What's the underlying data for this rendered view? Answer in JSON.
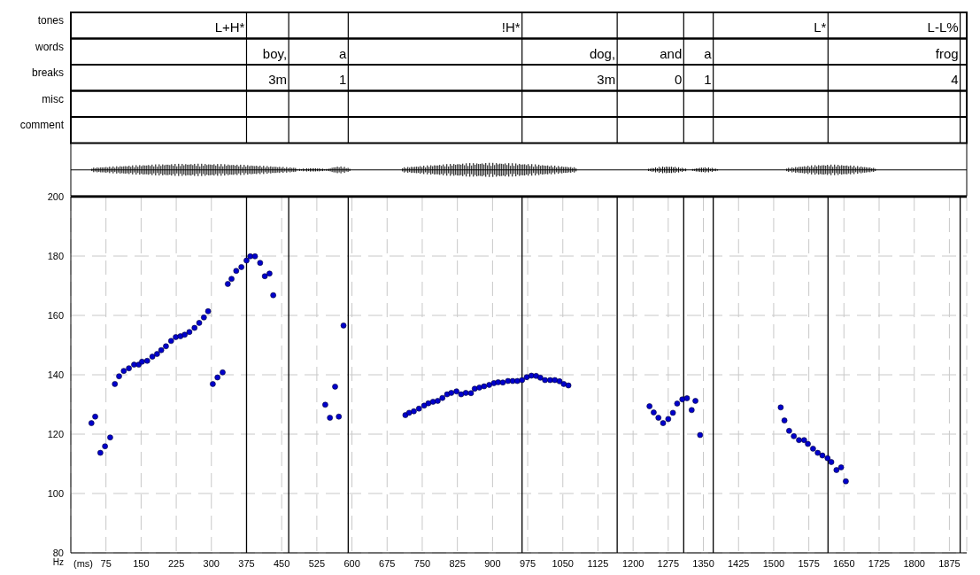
{
  "chart_data": {
    "type": "scatter",
    "xlabel": "(ms)",
    "ylabel": "Hz",
    "color": "#0000cc",
    "marker": "circle",
    "grid": true,
    "x": [
      44,
      52,
      63,
      73,
      84,
      94,
      103,
      113,
      124,
      135,
      145,
      152,
      163,
      174,
      184,
      193,
      203,
      214,
      224,
      234,
      243,
      253,
      264,
      274,
      284,
      293,
      303,
      313,
      324,
      335,
      343,
      353,
      364,
      375,
      383,
      393,
      404,
      414,
      424,
      432,
      543,
      553,
      564,
      572,
      582,
      714,
      722,
      732,
      743,
      754,
      763,
      773,
      783,
      793,
      803,
      812,
      823,
      833,
      843,
      854,
      862,
      872,
      882,
      893,
      903,
      912,
      922,
      933,
      943,
      953,
      963,
      973,
      983,
      993,
      1002,
      1012,
      1023,
      1033,
      1043,
      1052,
      1062,
      1235,
      1244,
      1254,
      1264,
      1275,
      1285,
      1294,
      1305,
      1315,
      1325,
      1333,
      1343,
      1515,
      1523,
      1533,
      1543,
      1554,
      1565,
      1573,
      1584,
      1594,
      1604,
      1615,
      1623,
      1634,
      1644,
      1654
    ],
    "values": [
      123.7,
      125.9,
      113.7,
      115.9,
      118.9,
      136.9,
      139.5,
      141.3,
      142.2,
      143.4,
      143.4,
      144.4,
      144.7,
      146.1,
      147.0,
      148.3,
      149.6,
      151.4,
      152.7,
      153.0,
      153.5,
      154.4,
      155.8,
      157.5,
      159.3,
      161.4,
      136.9,
      139.1,
      140.8,
      170.6,
      172.3,
      175.0,
      176.3,
      178.5,
      179.9,
      179.9,
      177.7,
      173.2,
      174.1,
      166.8,
      129.9,
      125.5,
      136.0,
      125.9,
      156.6,
      126.4,
      127.2,
      127.7,
      128.6,
      129.6,
      130.4,
      130.9,
      131.2,
      132.2,
      133.4,
      133.9,
      134.4,
      133.4,
      133.9,
      133.8,
      135.3,
      135.7,
      136.1,
      136.6,
      137.2,
      137.5,
      137.4,
      137.9,
      137.9,
      137.9,
      138.2,
      139.2,
      139.7,
      139.6,
      139.0,
      138.2,
      138.2,
      138.2,
      137.8,
      136.9,
      136.4,
      129.4,
      127.3,
      125.5,
      123.7,
      125.1,
      127.2,
      130.3,
      131.7,
      132.1,
      128.1,
      131.2,
      119.7,
      129.0,
      124.6,
      121.1,
      119.3,
      118.0,
      118.0,
      116.7,
      115.1,
      113.7,
      112.8,
      111.9,
      110.6,
      107.9,
      108.8,
      104.1
    ],
    "xlim": [
      0,
      1912
    ],
    "xticks": [
      75,
      150,
      225,
      300,
      375,
      450,
      525,
      600,
      675,
      750,
      825,
      900,
      975,
      1050,
      1125,
      1200,
      1275,
      1350,
      1425,
      1500,
      1575,
      1650,
      1725,
      1800,
      1875
    ],
    "ylim": [
      80,
      200
    ],
    "yticks": [
      80,
      100,
      120,
      140,
      160,
      180,
      200
    ],
    "ref_lines": [
      {
        "axis": "x",
        "value": 375,
        "color": "#000000"
      },
      {
        "axis": "x",
        "value": 465,
        "color": "#000000"
      },
      {
        "axis": "x",
        "value": 592,
        "color": "#000000"
      },
      {
        "axis": "x",
        "value": 963,
        "color": "#000000"
      },
      {
        "axis": "x",
        "value": 1166,
        "color": "#000000"
      },
      {
        "axis": "x",
        "value": 1308,
        "color": "#000000"
      },
      {
        "axis": "x",
        "value": 1371,
        "color": "#000000"
      },
      {
        "axis": "x",
        "value": 1616,
        "color": "#000000"
      },
      {
        "axis": "x",
        "value": 1898,
        "color": "#000000"
      }
    ],
    "annotations": [
      "tones",
      "L+H*",
      "!H*",
      "L*",
      "L-L%",
      "words",
      "boy,",
      "a",
      "dog,",
      "and",
      "a",
      "frog",
      "breaks",
      "3m",
      "1",
      "3m",
      "0",
      "1",
      "4",
      "misc",
      "comment"
    ]
  }
}
